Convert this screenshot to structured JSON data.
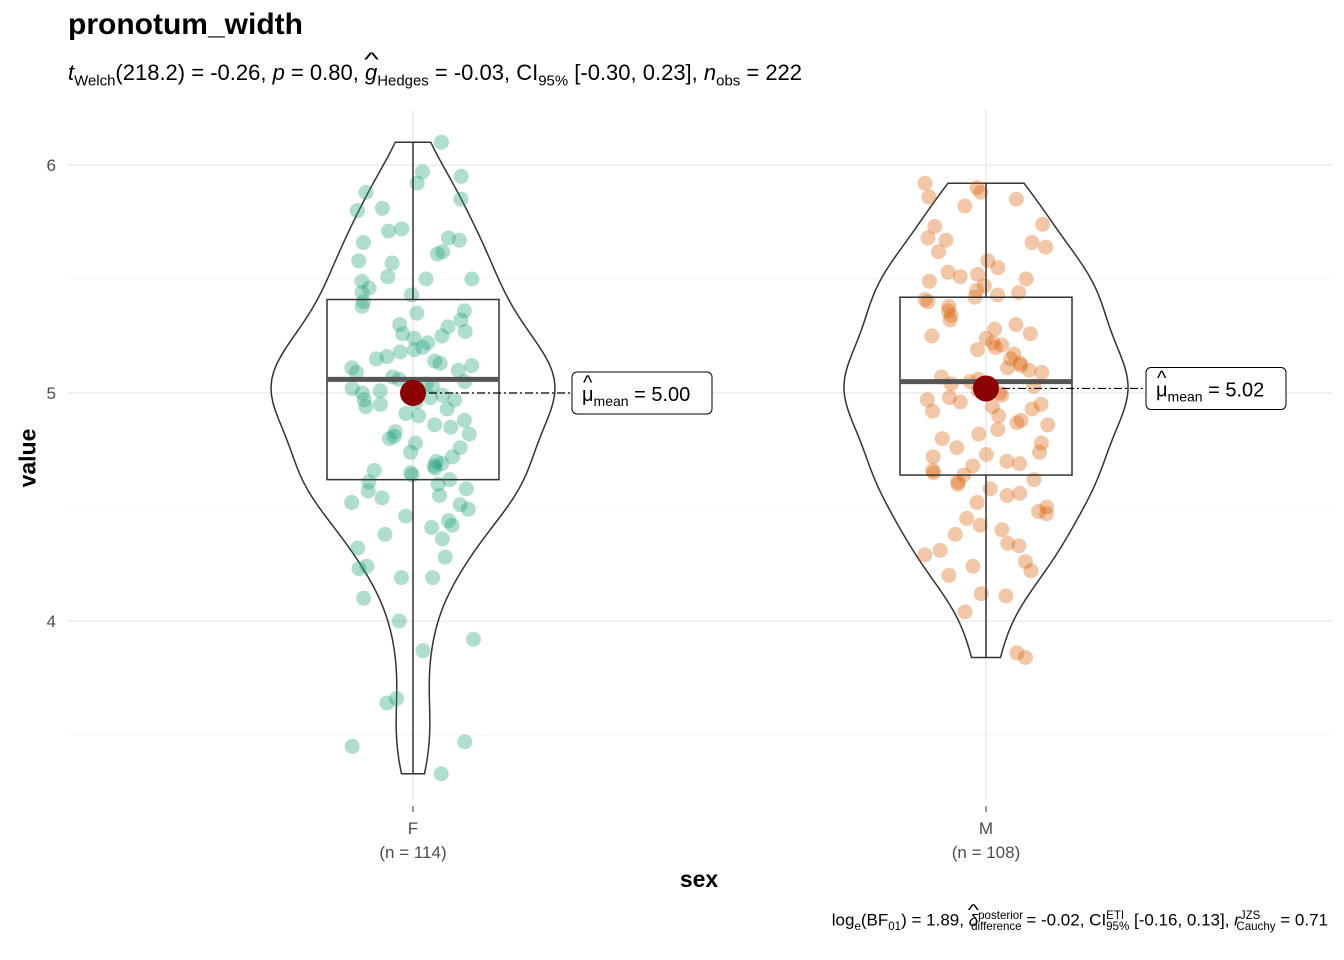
{
  "title": "pronotum_width",
  "subtitle": {
    "t_symbol": "t",
    "t_sub": "Welch",
    "df": "(218.2)",
    "t_value": " = -0.26, ",
    "p_symbol": "p",
    "p_value": " = 0.80, ",
    "g_symbol": "g",
    "g_sub": "Hedges",
    "g_value": " = -0.03, CI",
    "ci_sub": "95%",
    "ci_value": " [-0.30, 0.23], ",
    "n_symbol": "n",
    "n_sub": "obs",
    "n_value": " = 222"
  },
  "caption": {
    "log_text": "log",
    "log_sub": "e",
    "bf_text": "(BF",
    "bf_sub": "01",
    "bf_value": ") = 1.89, ",
    "delta_symbol": "δ",
    "delta_sup": "posterior",
    "delta_sub": "difference",
    "delta_value": " = -0.02, CI",
    "ci_sup": "ETI",
    "ci_sub": "95%",
    "ci_value": " [-0.16, 0.13], ",
    "r_symbol": "r",
    "r_sup": "JZS",
    "r_sub": "Cauchy",
    "r_value": " = 0.71"
  },
  "chart_data": {
    "type": "violin-box-scatter",
    "xlabel": "sex",
    "ylabel": "value",
    "ylim": [
      3.25,
      6.2
    ],
    "yticks": [
      "4",
      "5",
      "6"
    ],
    "grid": true,
    "groups": [
      {
        "name": "F",
        "n_label": "(n = 114)",
        "color": "#1b9e77",
        "box": {
          "q1": 4.62,
          "median": 5.06,
          "q3": 5.41,
          "whisker_low": 3.33,
          "whisker_high": 6.1
        },
        "mean": 5.0,
        "mean_label_prefix": "μ",
        "mean_label_sub": "mean",
        "mean_label_value": " = 5.00",
        "points": [
          6.1,
          5.97,
          5.95,
          5.92,
          5.88,
          5.85,
          5.81,
          5.8,
          5.72,
          5.71,
          5.68,
          5.67,
          5.66,
          5.62,
          5.61,
          5.58,
          5.57,
          5.51,
          5.5,
          5.5,
          5.49,
          5.46,
          5.44,
          5.43,
          5.4,
          5.38,
          5.36,
          5.32,
          5.3,
          5.29,
          5.27,
          5.26,
          5.24,
          5.22,
          5.2,
          5.19,
          5.18,
          5.16,
          5.15,
          5.14,
          5.12,
          5.11,
          5.1,
          5.09,
          5.07,
          5.06,
          5.05,
          5.04,
          5.03,
          5.02,
          5.01,
          5.0,
          4.99,
          4.98,
          4.97,
          4.96,
          4.95,
          4.94,
          4.93,
          4.91,
          4.9,
          4.88,
          4.86,
          4.85,
          4.83,
          4.81,
          4.8,
          4.78,
          4.76,
          4.74,
          4.72,
          4.7,
          4.69,
          4.68,
          4.66,
          4.65,
          4.64,
          4.62,
          4.61,
          4.6,
          4.58,
          4.57,
          4.55,
          4.52,
          4.51,
          4.49,
          4.46,
          4.44,
          4.42,
          4.41,
          4.38,
          4.36,
          4.32,
          4.28,
          4.24,
          4.23,
          4.19,
          4.19,
          4.1,
          4.0,
          3.92,
          3.87,
          3.66,
          3.64,
          3.47,
          3.45,
          3.33,
          5.35,
          5.25,
          5.13,
          4.97,
          4.82,
          4.67,
          4.54
        ]
      },
      {
        "name": "M",
        "n_label": "(n = 108)",
        "color": "#d95f02",
        "box": {
          "q1": 4.64,
          "median": 5.05,
          "q3": 5.42,
          "whisker_low": 3.84,
          "whisker_high": 5.92
        },
        "mean": 5.02,
        "mean_label_prefix": "μ",
        "mean_label_sub": "mean",
        "mean_label_value": " = 5.02",
        "points": [
          5.92,
          5.9,
          5.88,
          5.86,
          5.85,
          5.82,
          5.74,
          5.73,
          5.68,
          5.67,
          5.66,
          5.64,
          5.62,
          5.58,
          5.55,
          5.53,
          5.52,
          5.51,
          5.5,
          5.49,
          5.47,
          5.45,
          5.44,
          5.43,
          5.42,
          5.41,
          5.4,
          5.38,
          5.36,
          5.34,
          5.32,
          5.3,
          5.28,
          5.26,
          5.25,
          5.24,
          5.22,
          5.2,
          5.19,
          5.17,
          5.15,
          5.13,
          5.12,
          5.1,
          5.09,
          5.07,
          5.06,
          5.05,
          5.04,
          5.03,
          5.02,
          5.01,
          5.0,
          4.99,
          4.98,
          4.97,
          4.96,
          4.95,
          4.94,
          4.93,
          4.92,
          4.9,
          4.88,
          4.86,
          4.84,
          4.82,
          4.8,
          4.78,
          4.76,
          4.74,
          4.72,
          4.7,
          4.69,
          4.68,
          4.66,
          4.65,
          4.64,
          4.62,
          4.61,
          4.6,
          4.58,
          4.56,
          4.55,
          4.52,
          4.5,
          4.48,
          4.47,
          4.45,
          4.42,
          4.4,
          4.38,
          4.34,
          4.33,
          4.31,
          4.29,
          4.26,
          4.24,
          4.22,
          4.2,
          4.12,
          4.11,
          4.04,
          3.86,
          3.84,
          5.21,
          5.11,
          4.87,
          4.73
        ]
      }
    ]
  }
}
